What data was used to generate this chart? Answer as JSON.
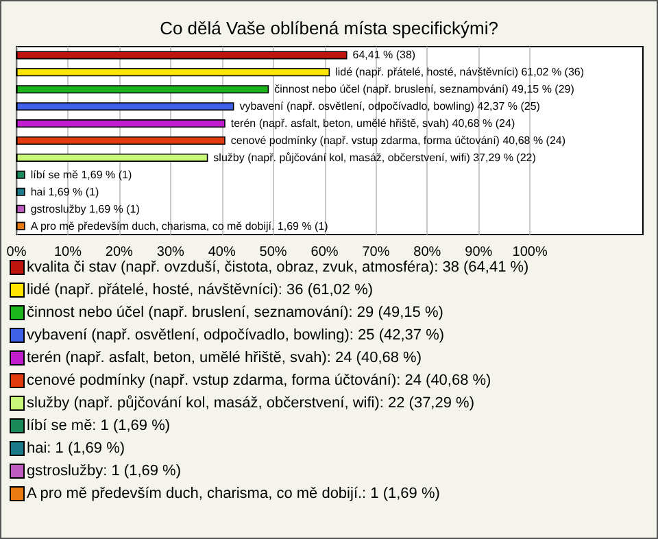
{
  "chart_data": {
    "type": "bar",
    "orientation": "horizontal",
    "stacked": true,
    "title": "Co dělá Vaše oblíbená místa specifickými?",
    "categories": [
      null,
      null,
      null,
      null,
      null,
      null,
      null,
      null,
      null,
      null,
      null
    ],
    "series": [
      {
        "name": "kvalita či stav (např. ovzduší, čistota, obraz, zvuk, atmosféra): 38 (64,41 %)",
        "color": "#c0150f",
        "values": [
          64.41,
          null,
          null,
          null,
          null,
          null,
          null,
          null,
          null,
          null,
          null
        ],
        "value_labels": [
          "64,41 % (38)",
          null,
          null,
          null,
          null,
          null,
          null,
          null,
          null,
          null,
          null
        ]
      },
      {
        "name": "lidé (např. přátelé, hosté, návštěvníci): 36 (61,02 %)",
        "color": "#ffe600",
        "values": [
          null,
          61.02,
          null,
          null,
          null,
          null,
          null,
          null,
          null,
          null,
          null
        ],
        "value_labels": [
          null,
          "lidé (např. přátelé, hosté, návštěvníci) 61,02 % (36)",
          null,
          null,
          null,
          null,
          null,
          null,
          null,
          null,
          null
        ]
      },
      {
        "name": "činnost nebo účel (např. bruslení, seznamování): 29 (49,15 %)",
        "color": "#1db31d",
        "values": [
          null,
          null,
          49.15,
          null,
          null,
          null,
          null,
          null,
          null,
          null,
          null
        ],
        "value_labels": [
          null,
          null,
          "činnost nebo účel (např. bruslení, seznamování) 49,15 % (29)",
          null,
          null,
          null,
          null,
          null,
          null,
          null,
          null
        ]
      },
      {
        "name": "vybavení (např. osvětlení, odpočívadlo, bowling): 25 (42,37 %)",
        "color": "#3f61e8",
        "values": [
          null,
          null,
          null,
          42.37,
          null,
          null,
          null,
          null,
          null,
          null,
          null
        ],
        "value_labels": [
          null,
          null,
          null,
          "vybavení (např. osvětlení, odpočívadlo, bowling) 42,37 % (25)",
          null,
          null,
          null,
          null,
          null,
          null,
          null
        ]
      },
      {
        "name": "terén (např. asfalt, beton, umělé hřiště, svah): 24 (40,68 %)",
        "color": "#c21ccf",
        "values": [
          null,
          null,
          null,
          null,
          40.68,
          null,
          null,
          null,
          null,
          null,
          null
        ],
        "value_labels": [
          null,
          null,
          null,
          null,
          "terén (např. asfalt, beton, umělé hřiště, svah) 40,68 % (24)",
          null,
          null,
          null,
          null,
          null,
          null
        ]
      },
      {
        "name": "cenové podmínky (např. vstup zdarma, forma účtování): 24 (40,68 %)",
        "color": "#e03a0e",
        "values": [
          null,
          null,
          null,
          null,
          null,
          40.68,
          null,
          null,
          null,
          null,
          null
        ],
        "value_labels": [
          null,
          null,
          null,
          null,
          null,
          "cenové podmínky (např. vstup zdarma, forma účtování) 40,68 % (24)",
          null,
          null,
          null,
          null,
          null
        ]
      },
      {
        "name": "služby (např. půjčování kol, masáž, občerstvení, wifi): 22 (37,29 %)",
        "color": "#c8f77a",
        "values": [
          null,
          null,
          null,
          null,
          null,
          null,
          37.29,
          null,
          null,
          null,
          null
        ],
        "value_labels": [
          null,
          null,
          null,
          null,
          null,
          null,
          "služby (např. půjčování kol, masáž, občerstvení, wifi) 37,29 % (22)",
          null,
          null,
          null,
          null
        ]
      },
      {
        "name": "líbí se mě: 1 (1,69 %)",
        "color": "#1a8a5a",
        "values": [
          null,
          null,
          null,
          null,
          null,
          null,
          null,
          1.69,
          null,
          null,
          null
        ],
        "value_labels": [
          null,
          null,
          null,
          null,
          null,
          null,
          null,
          "líbí se mě 1,69 % (1)",
          null,
          null,
          null
        ]
      },
      {
        "name": "hai: 1 (1,69 %)",
        "color": "#1a7a8a",
        "values": [
          null,
          null,
          null,
          null,
          null,
          null,
          null,
          null,
          1.69,
          null,
          null
        ],
        "value_labels": [
          null,
          null,
          null,
          null,
          null,
          null,
          null,
          null,
          "hai 1,69 % (1)",
          null,
          null
        ]
      },
      {
        "name": "gstroslužby: 1 (1,69 %)",
        "color": "#c05cc0",
        "values": [
          null,
          null,
          null,
          null,
          null,
          null,
          null,
          null,
          null,
          1.69,
          null
        ],
        "value_labels": [
          null,
          null,
          null,
          null,
          null,
          null,
          null,
          null,
          null,
          "gstroslužby 1,69 % (1)",
          null
        ]
      },
      {
        "name": "A pro mě především duch, charisma, co mě dobijí.: 1 (1,69 %)",
        "color": "#e87a12",
        "values": [
          null,
          null,
          null,
          null,
          null,
          null,
          null,
          null,
          null,
          null,
          1.69
        ],
        "value_labels": [
          null,
          null,
          null,
          null,
          null,
          null,
          null,
          null,
          null,
          null,
          "A pro mě především duch, charisma, co mě dobijí. 1,69 % (1)"
        ]
      }
    ],
    "xlim": [
      0,
      122
    ],
    "xticks": [
      {
        "value": 0,
        "label": "0%"
      },
      {
        "value": 10,
        "label": "10%"
      },
      {
        "value": 20,
        "label": "20%"
      },
      {
        "value": 30,
        "label": "30%"
      },
      {
        "value": 40,
        "label": "40%"
      },
      {
        "value": 50,
        "label": "50%"
      },
      {
        "value": 60,
        "label": "60%"
      },
      {
        "value": 70,
        "label": "70%"
      },
      {
        "value": 80,
        "label": "80%"
      },
      {
        "value": 90,
        "label": "90%"
      },
      {
        "value": 100,
        "label": "100%"
      }
    ],
    "grid": "x",
    "legend": "bottom"
  }
}
